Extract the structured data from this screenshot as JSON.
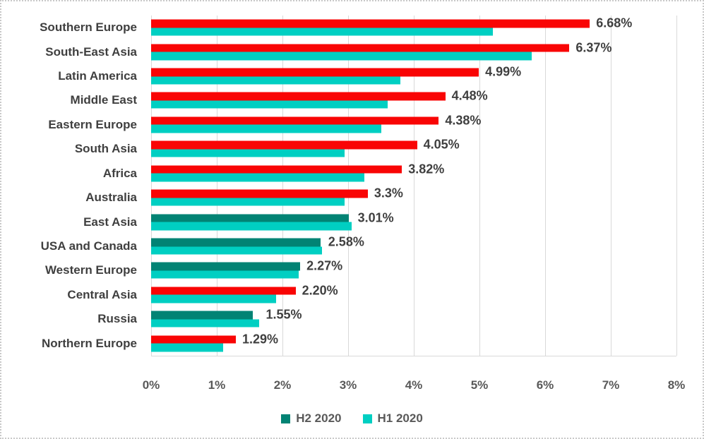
{
  "chart_data": {
    "type": "bar",
    "orientation": "horizontal",
    "title": "",
    "categories": [
      "Southern Europe",
      "South-East Asia",
      "Latin America",
      "Middle East",
      "Eastern Europe",
      "South Asia",
      "Africa",
      "Australia",
      "East Asia",
      "USA and Canada",
      "Western Europe",
      "Central Asia",
      "Russia",
      "Northern Europe"
    ],
    "series": [
      {
        "name": "H2 2020",
        "legend_color": "#028374",
        "values": [
          6.68,
          6.37,
          4.99,
          4.48,
          4.38,
          4.05,
          3.82,
          3.3,
          3.01,
          2.58,
          2.27,
          2.2,
          1.55,
          1.29
        ],
        "labels": [
          "6.68%",
          "6.37%",
          "4.99%",
          "4.48%",
          "4.38%",
          "4.05%",
          "3.82%",
          "3.3%",
          "3.01%",
          "2.58%",
          "2.27%",
          "2.20%",
          "1.55%",
          "1.29%"
        ],
        "point_colors": [
          "#f90505",
          "#f90505",
          "#f90505",
          "#f90505",
          "#f90505",
          "#f90505",
          "#f90505",
          "#f90505",
          "#028374",
          "#028374",
          "#028374",
          "#f90505",
          "#028374",
          "#f90505"
        ]
      },
      {
        "name": "H1 2020",
        "legend_color": "#00cfc2",
        "values": [
          5.2,
          5.8,
          3.8,
          3.6,
          3.5,
          2.95,
          3.25,
          2.95,
          3.05,
          2.6,
          2.25,
          1.9,
          1.65,
          1.1
        ]
      }
    ],
    "xlim": [
      0,
      8
    ],
    "xticks": [
      "0%",
      "1%",
      "2%",
      "3%",
      "4%",
      "5%",
      "6%",
      "7%",
      "8%"
    ],
    "grid": true,
    "legend_position": "bottom",
    "data_labels": "outside end of H2 2020 bars"
  },
  "colors": {
    "bar_increase_red": "#f90505",
    "bar_h2_teal": "#028374",
    "bar_h1_cyan": "#00cfc2",
    "category_text": "#3f3f3f",
    "value_label_text": "#3f3f3f",
    "axis_text": "#595959",
    "legend_text": "#595959",
    "gridline": "#d9d9d9",
    "frame_border": "#c9c9c9",
    "background": "#ffffff"
  }
}
